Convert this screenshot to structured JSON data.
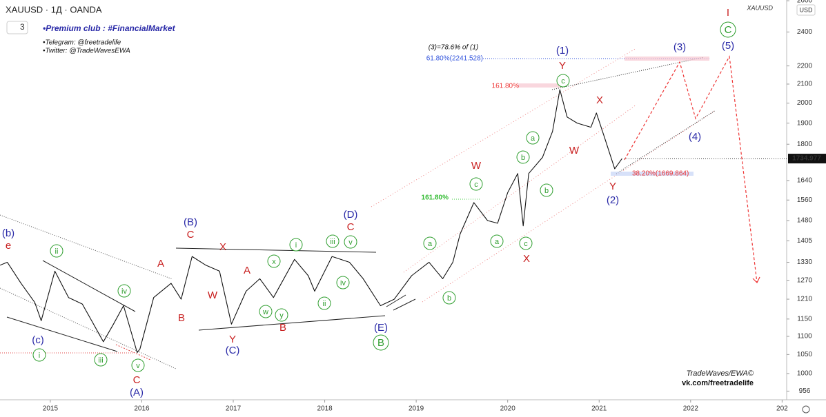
{
  "chart_data": {
    "type": "line",
    "title": "XAUUSD · 1Д · OANDA",
    "interval_badge": "3",
    "notes": [
      "•Premium club : #FinancialMarket",
      "•Telegram: @freetradelife",
      "•Twitter: @TradeWavesEWA"
    ],
    "currency": "USD",
    "log_scale": true,
    "x": [
      2014.45,
      2014.53,
      2014.68,
      2014.83,
      2014.9,
      2015.05,
      2015.2,
      2015.35,
      2015.58,
      2015.69,
      2015.8,
      2015.95,
      2015.98,
      2016.13,
      2016.32,
      2016.43,
      2016.55,
      2016.7,
      2016.85,
      2016.98,
      2017.14,
      2017.29,
      2017.44,
      2017.67,
      2017.82,
      2017.89,
      2018.08,
      2018.27,
      2018.42,
      2018.61,
      2018.76,
      2018.95,
      2019.14,
      2019.29,
      2019.4,
      2019.48,
      2019.63,
      2019.78,
      2019.89,
      2020.0,
      2020.11,
      2020.17,
      2020.23,
      2020.38,
      2020.49,
      2020.57,
      2020.65,
      2020.76,
      2020.91,
      2020.97,
      2021.06,
      2021.17,
      2021.25
    ],
    "series": [
      {
        "name": "XAUUSD",
        "color": "#111111",
        "values": [
          1320,
          1330,
          1260,
          1200,
          1145,
          1300,
          1215,
          1195,
          1085,
          1135,
          1190,
          1055,
          1065,
          1215,
          1260,
          1210,
          1350,
          1320,
          1300,
          1135,
          1235,
          1275,
          1215,
          1340,
          1285,
          1235,
          1350,
          1330,
          1275,
          1190,
          1210,
          1285,
          1330,
          1275,
          1330,
          1430,
          1550,
          1480,
          1470,
          1590,
          1670,
          1460,
          1670,
          1740,
          1860,
          2070,
          1930,
          1900,
          1880,
          1950,
          1830,
          1690,
          1735
        ]
      }
    ],
    "last_price": 1734.977,
    "xlim": [
      2014.45,
      2023.05
    ],
    "xticks": [
      2015,
      2016,
      2017,
      2018,
      2019,
      2020,
      2021,
      2022,
      {
        "value": 2023,
        "label": "202"
      }
    ],
    "ylim": [
      935,
      2605
    ],
    "yticks": [
      956,
      1000,
      1050,
      1100,
      1150,
      1210,
      1270,
      1330,
      1405,
      1480,
      1560,
      1640,
      1800,
      1900,
      2000,
      2100,
      2200,
      2400,
      2600
    ],
    "annotations": [
      "(3)=78.6% of (1)",
      "61.80%(2241.528)",
      "161.80%",
      "161.80%",
      "38.20%(1669.864)"
    ],
    "wave_labels": [
      "(b)",
      "e",
      "ii",
      "(c)",
      "i",
      "iii",
      "iv",
      "v",
      "C",
      "(A)",
      "A",
      "B",
      "(B)",
      "C",
      "X",
      "W",
      "Y",
      "(C)",
      "A",
      "x",
      "w",
      "y",
      "B",
      "i",
      "iii",
      "v",
      "ii",
      "iv",
      "(D)",
      "C",
      "(E)",
      "B",
      "a",
      "b",
      "a",
      "c",
      "X",
      "c",
      "W",
      "b",
      "a",
      "b",
      "W",
      "c",
      "Y",
      "(1)",
      "X",
      "Y",
      "(2)",
      "(3)",
      "(4)",
      "(5)",
      "C",
      "I"
    ],
    "watermark": [
      "TradeWaves/EWA©",
      "vk.com/freetradelife"
    ]
  }
}
